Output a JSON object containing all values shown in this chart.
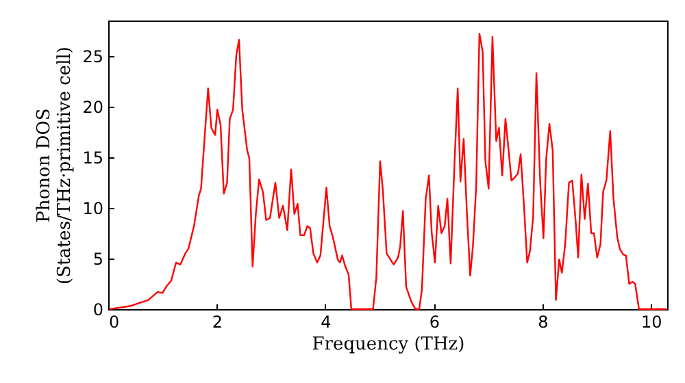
{
  "chart_data": {
    "type": "line",
    "xlabel": "Frequency (THz)",
    "ylabel": "Phonon DOS\n(States/THz·primitive cell)",
    "xlim": [
      0,
      10.3
    ],
    "ylim": [
      0,
      28.5
    ],
    "xticks": [
      0,
      2,
      4,
      6,
      8,
      10
    ],
    "yticks": [
      0,
      5,
      10,
      15,
      20,
      25
    ],
    "grid": false,
    "series": [
      {
        "color": "#ff0000",
        "x": [
          0.03,
          0.4,
          0.74,
          0.91,
          1.0,
          1.08,
          1.16,
          1.25,
          1.33,
          1.42,
          1.48,
          1.58,
          1.67,
          1.71,
          1.84,
          1.9,
          1.97,
          2.01,
          2.07,
          2.13,
          2.19,
          2.24,
          2.3,
          2.36,
          2.41,
          2.47,
          2.56,
          2.6,
          2.66,
          2.72,
          2.78,
          2.85,
          2.91,
          2.98,
          3.08,
          3.15,
          3.22,
          3.3,
          3.37,
          3.43,
          3.49,
          3.54,
          3.61,
          3.67,
          3.72,
          3.78,
          3.85,
          3.91,
          4.02,
          4.08,
          4.14,
          4.23,
          4.27,
          4.31,
          4.37,
          4.43,
          4.48,
          4.88,
          4.94,
          5.01,
          5.06,
          5.13,
          5.26,
          5.34,
          5.38,
          5.43,
          5.49,
          5.58,
          5.66,
          5.73,
          5.78,
          5.85,
          5.91,
          5.96,
          6.02,
          6.08,
          6.14,
          6.2,
          6.25,
          6.31,
          6.38,
          6.44,
          6.49,
          6.55,
          6.61,
          6.67,
          6.72,
          6.78,
          6.84,
          6.9,
          6.95,
          7.01,
          7.08,
          7.15,
          7.2,
          7.26,
          7.32,
          7.37,
          7.43,
          7.49,
          7.55,
          7.6,
          7.66,
          7.72,
          7.77,
          7.83,
          7.89,
          7.96,
          8.02,
          8.07,
          8.13,
          8.19,
          8.25,
          8.31,
          8.36,
          8.42,
          8.49,
          8.55,
          8.61,
          8.66,
          8.72,
          8.78,
          8.84,
          8.9,
          8.95,
          9.01,
          9.07,
          9.12,
          9.18,
          9.25,
          9.31,
          9.38,
          9.43,
          9.49,
          9.54,
          9.6,
          9.66,
          9.71,
          9.78,
          10.28
        ],
        "values": [
          0,
          0.3,
          0.9,
          1.7,
          1.6,
          2.3,
          2.8,
          4.6,
          4.4,
          5.5,
          6.0,
          8.2,
          11.2,
          11.9,
          21.8,
          17.9,
          17.2,
          19.7,
          18.2,
          11.4,
          12.5,
          18.8,
          19.7,
          25.1,
          26.6,
          19.7,
          15.7,
          14.9,
          4.2,
          9.4,
          12.8,
          11.6,
          8.8,
          9.0,
          12.5,
          9.0,
          10.2,
          7.8,
          13.8,
          9.4,
          10.4,
          7.3,
          7.3,
          8.2,
          8.0,
          5.5,
          4.6,
          5.3,
          12.0,
          8.2,
          7.1,
          4.9,
          4.6,
          5.3,
          4.2,
          3.4,
          0,
          0,
          3.1,
          14.6,
          11.8,
          5.5,
          4.4,
          5.1,
          6.2,
          9.7,
          2.2,
          0.8,
          0,
          0,
          1.9,
          10.9,
          13.2,
          7.6,
          4.6,
          10.2,
          7.5,
          8.2,
          10.9,
          4.5,
          14.3,
          21.8,
          12.6,
          16.8,
          9.4,
          3.3,
          6.2,
          12.1,
          27.2,
          25.4,
          14.6,
          11.9,
          26.9,
          16.6,
          17.9,
          13.2,
          18.8,
          16.1,
          12.7,
          13.0,
          13.4,
          15.3,
          10.3,
          4.6,
          5.7,
          9.1,
          23.3,
          12.5,
          7.0,
          14.8,
          18.3,
          15.7,
          0.9,
          4.9,
          3.6,
          6.4,
          12.5,
          12.7,
          8.9,
          5.1,
          13.3,
          8.9,
          12.4,
          7.5,
          7.5,
          5.1,
          6.4,
          11.6,
          12.7,
          17.6,
          10.9,
          7.1,
          5.9,
          5.4,
          5.3,
          2.5,
          2.7,
          2.5,
          0,
          0
        ]
      }
    ]
  }
}
